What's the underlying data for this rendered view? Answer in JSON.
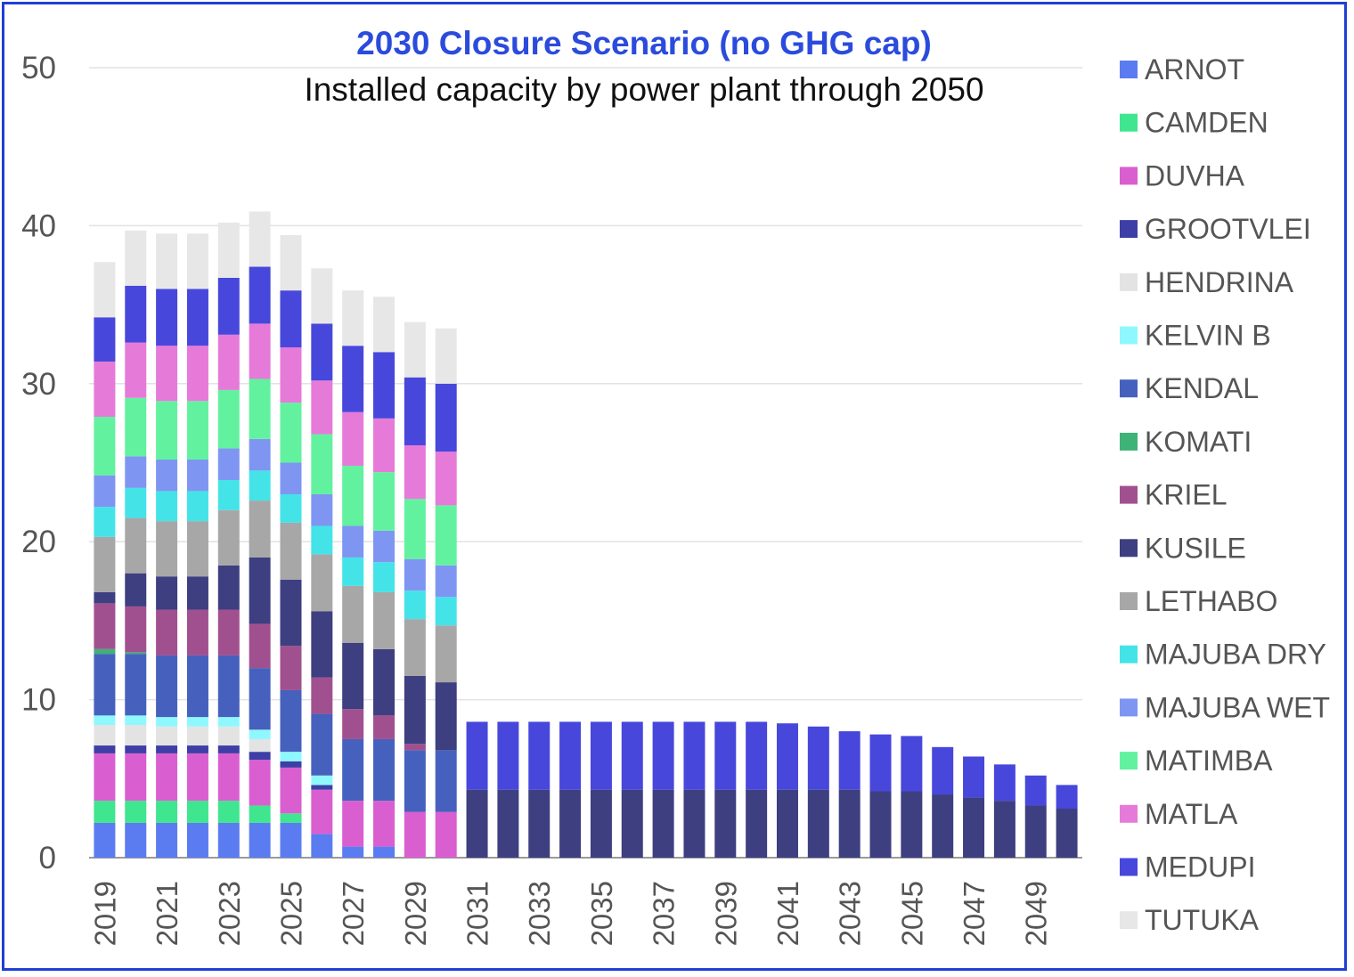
{
  "chart_data": {
    "type": "bar",
    "stacked": true,
    "title": "2030 Closure Scenario (no GHG cap)",
    "subtitle": "Installed capacity by power plant through 2050",
    "xlabel": "",
    "ylabel": "",
    "ylim": [
      0,
      50
    ],
    "yticks": [
      0,
      10,
      20,
      30,
      40,
      50
    ],
    "grid": true,
    "legend_position": "right",
    "categories": [
      "2019",
      "2020",
      "2021",
      "2022",
      "2023",
      "2024",
      "2025",
      "2026",
      "2027",
      "2028",
      "2029",
      "2030",
      "2031",
      "2032",
      "2033",
      "2034",
      "2035",
      "2036",
      "2037",
      "2038",
      "2039",
      "2040",
      "2041",
      "2042",
      "2043",
      "2044",
      "2045",
      "2046",
      "2047",
      "2048",
      "2049",
      "2050"
    ],
    "xtick_labels": [
      "2019",
      "2021",
      "2023",
      "2025",
      "2027",
      "2029",
      "2031",
      "2033",
      "2035",
      "2037",
      "2039",
      "2041",
      "2043",
      "2045",
      "2047",
      "2049"
    ],
    "series": [
      {
        "name": "ARNOT",
        "color": "#5b7cf0",
        "values": [
          2.2,
          2.2,
          2.2,
          2.2,
          2.2,
          2.2,
          2.2,
          1.5,
          0.7,
          0.7,
          0,
          0,
          0,
          0,
          0,
          0,
          0,
          0,
          0,
          0,
          0,
          0,
          0,
          0,
          0,
          0,
          0,
          0,
          0,
          0,
          0,
          0
        ]
      },
      {
        "name": "CAMDEN",
        "color": "#3fe58f",
        "values": [
          1.4,
          1.4,
          1.4,
          1.4,
          1.4,
          1.1,
          0.6,
          0,
          0,
          0,
          0,
          0,
          0,
          0,
          0,
          0,
          0,
          0,
          0,
          0,
          0,
          0,
          0,
          0,
          0,
          0,
          0,
          0,
          0,
          0,
          0,
          0
        ]
      },
      {
        "name": "DUVHA",
        "color": "#d95fd0",
        "values": [
          3.0,
          3.0,
          3.0,
          3.0,
          3.0,
          2.9,
          2.9,
          2.8,
          2.9,
          2.9,
          2.9,
          2.9,
          0,
          0,
          0,
          0,
          0,
          0,
          0,
          0,
          0,
          0,
          0,
          0,
          0,
          0,
          0,
          0,
          0,
          0,
          0,
          0
        ]
      },
      {
        "name": "GROOTVLEI",
        "color": "#3d3fa6",
        "values": [
          0.5,
          0.5,
          0.5,
          0.5,
          0.5,
          0.5,
          0.4,
          0.3,
          0,
          0,
          0,
          0,
          0,
          0,
          0,
          0,
          0,
          0,
          0,
          0,
          0,
          0,
          0,
          0,
          0,
          0,
          0,
          0,
          0,
          0,
          0,
          0
        ]
      },
      {
        "name": "HENDRINA",
        "color": "#e3e3e3",
        "values": [
          1.3,
          1.3,
          1.2,
          1.2,
          1.2,
          0.8,
          0,
          0,
          0,
          0,
          0,
          0,
          0,
          0,
          0,
          0,
          0,
          0,
          0,
          0,
          0,
          0,
          0,
          0,
          0,
          0,
          0,
          0,
          0,
          0,
          0,
          0
        ]
      },
      {
        "name": "KELVIN B",
        "color": "#8ff8ff",
        "values": [
          0.6,
          0.6,
          0.6,
          0.6,
          0.6,
          0.6,
          0.6,
          0.6,
          0,
          0,
          0,
          0,
          0,
          0,
          0,
          0,
          0,
          0,
          0,
          0,
          0,
          0,
          0,
          0,
          0,
          0,
          0,
          0,
          0,
          0,
          0,
          0
        ]
      },
      {
        "name": "KENDAL",
        "color": "#4661bd",
        "values": [
          3.9,
          3.9,
          3.9,
          3.9,
          3.9,
          3.9,
          3.9,
          3.9,
          3.9,
          3.9,
          3.9,
          3.9,
          0,
          0,
          0,
          0,
          0,
          0,
          0,
          0,
          0,
          0,
          0,
          0,
          0,
          0,
          0,
          0,
          0,
          0,
          0,
          0
        ]
      },
      {
        "name": "KOMATI",
        "color": "#3eb277",
        "values": [
          0.3,
          0.1,
          0,
          0,
          0,
          0,
          0,
          0,
          0,
          0,
          0,
          0,
          0,
          0,
          0,
          0,
          0,
          0,
          0,
          0,
          0,
          0,
          0,
          0,
          0,
          0,
          0,
          0,
          0,
          0,
          0,
          0
        ]
      },
      {
        "name": "KRIEL",
        "color": "#a1508f",
        "values": [
          2.9,
          2.9,
          2.9,
          2.9,
          2.9,
          2.8,
          2.8,
          2.3,
          1.9,
          1.5,
          0.4,
          0,
          0,
          0,
          0,
          0,
          0,
          0,
          0,
          0,
          0,
          0,
          0,
          0,
          0,
          0,
          0,
          0,
          0,
          0,
          0,
          0
        ]
      },
      {
        "name": "KUSILE",
        "color": "#3d3f80",
        "values": [
          0.7,
          2.1,
          2.1,
          2.1,
          2.8,
          4.2,
          4.2,
          4.2,
          4.2,
          4.2,
          4.3,
          4.3,
          4.3,
          4.3,
          4.3,
          4.3,
          4.3,
          4.3,
          4.3,
          4.3,
          4.3,
          4.3,
          4.3,
          4.3,
          4.3,
          4.2,
          4.2,
          4.0,
          3.8,
          3.6,
          3.3,
          3.1
        ]
      },
      {
        "name": "LETHABO",
        "color": "#a7a7a7",
        "values": [
          3.5,
          3.5,
          3.5,
          3.5,
          3.5,
          3.6,
          3.6,
          3.6,
          3.6,
          3.6,
          3.6,
          3.6,
          0,
          0,
          0,
          0,
          0,
          0,
          0,
          0,
          0,
          0,
          0,
          0,
          0,
          0,
          0,
          0,
          0,
          0,
          0,
          0
        ]
      },
      {
        "name": "MAJUBA DRY",
        "color": "#44e3e8",
        "values": [
          1.9,
          1.9,
          1.9,
          1.9,
          1.9,
          1.9,
          1.8,
          1.8,
          1.8,
          1.9,
          1.8,
          1.8,
          0,
          0,
          0,
          0,
          0,
          0,
          0,
          0,
          0,
          0,
          0,
          0,
          0,
          0,
          0,
          0,
          0,
          0,
          0,
          0
        ]
      },
      {
        "name": "MAJUBA WET",
        "color": "#7e96f2",
        "values": [
          2.0,
          2.0,
          2.0,
          2.0,
          2.0,
          2.0,
          2.0,
          2.0,
          2.0,
          2.0,
          2.0,
          2.0,
          0,
          0,
          0,
          0,
          0,
          0,
          0,
          0,
          0,
          0,
          0,
          0,
          0,
          0,
          0,
          0,
          0,
          0,
          0,
          0
        ]
      },
      {
        "name": "MATIMBA",
        "color": "#62f29f",
        "values": [
          3.7,
          3.7,
          3.7,
          3.7,
          3.7,
          3.8,
          3.8,
          3.8,
          3.8,
          3.7,
          3.8,
          3.8,
          0,
          0,
          0,
          0,
          0,
          0,
          0,
          0,
          0,
          0,
          0,
          0,
          0,
          0,
          0,
          0,
          0,
          0,
          0,
          0
        ]
      },
      {
        "name": "MATLA",
        "color": "#e67ad9",
        "values": [
          3.5,
          3.5,
          3.5,
          3.5,
          3.5,
          3.5,
          3.5,
          3.4,
          3.4,
          3.4,
          3.4,
          3.4,
          0,
          0,
          0,
          0,
          0,
          0,
          0,
          0,
          0,
          0,
          0,
          0,
          0,
          0,
          0,
          0,
          0,
          0,
          0,
          0
        ]
      },
      {
        "name": "MEDUPI",
        "color": "#4847db",
        "values": [
          2.8,
          3.6,
          3.6,
          3.6,
          3.6,
          3.6,
          3.6,
          3.6,
          4.2,
          4.2,
          4.3,
          4.3,
          4.3,
          4.3,
          4.3,
          4.3,
          4.3,
          4.3,
          4.3,
          4.3,
          4.3,
          4.3,
          4.2,
          4.0,
          3.7,
          3.6,
          3.5,
          3.0,
          2.6,
          2.3,
          1.9,
          1.5
        ]
      },
      {
        "name": "TUTUKA",
        "color": "#e7e7e7",
        "values": [
          3.5,
          3.5,
          3.5,
          3.5,
          3.5,
          3.5,
          3.5,
          3.5,
          3.5,
          3.5,
          3.5,
          3.5,
          0,
          0,
          0,
          0,
          0,
          0,
          0,
          0,
          0,
          0,
          0,
          0,
          0,
          0,
          0,
          0,
          0,
          0,
          0,
          0
        ]
      }
    ]
  }
}
